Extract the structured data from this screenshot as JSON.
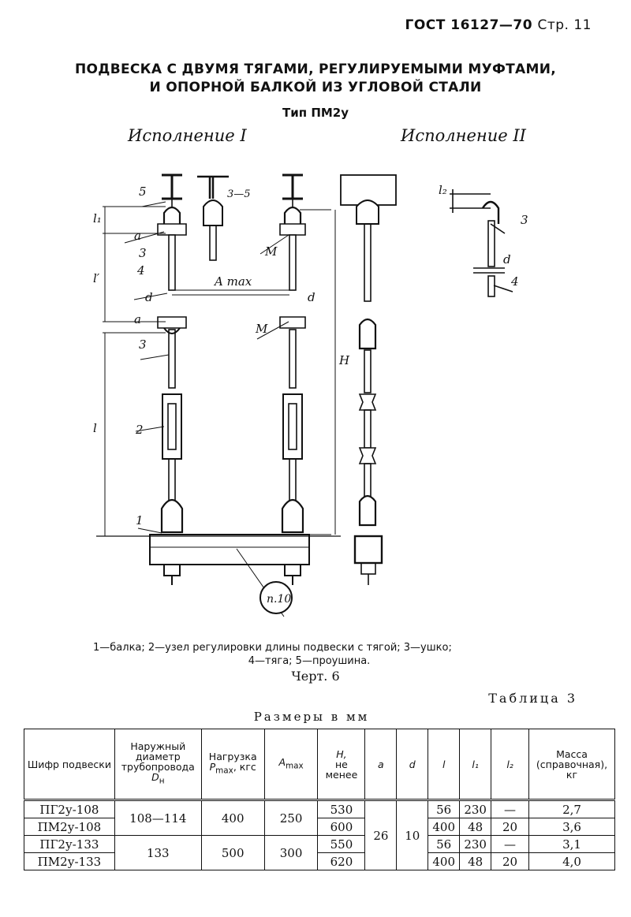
{
  "header": {
    "gost": "ГОСТ 16127—70",
    "page": "Стр. 11"
  },
  "title": {
    "line1": "ПОДВЕСКА С ДВУМЯ ТЯГАМИ, РЕГУЛИРУЕМЫМИ МУФТАМИ,",
    "line2": "И ОПОРНОЙ БАЛКОЙ ИЗ УГЛОВОЙ СТАЛИ",
    "type": "Тип ПМ2у"
  },
  "versions": {
    "v1": "Исполнение I",
    "v2": "Исполнение II"
  },
  "drawing": {
    "labels": {
      "n1": "1",
      "n2": "2",
      "n3a": "3",
      "n3b": "3",
      "n3c": "3",
      "n4a": "4",
      "n4b": "4",
      "n5": "5",
      "m1": "M",
      "m2": "M",
      "amax": "A max",
      "d1": "d",
      "d2": "d",
      "d3": "d",
      "a1": "a",
      "a2": "a",
      "l1": "l₁",
      "lprime": "l′",
      "l": "l",
      "H": "H",
      "l2": "l₂",
      "r35": "3—5",
      "ref": "п.10"
    }
  },
  "legend": {
    "line1": "1—балка; 2—узел регулировки длины подвески с тягой; 3—ушко;",
    "line2": "4—тяга; 5—проушина."
  },
  "chert": "Черт. 6",
  "table": {
    "caption": "Таблица 3",
    "units": "Размеры в мм",
    "headers": {
      "shifr": "Шифр подвески",
      "dn_a": "Наружный диаметр трубопровода",
      "dn_b": "D",
      "dn_sub": "н",
      "load_a": "Нагрузка",
      "load_b": "P",
      "load_sub": "max",
      "load_c": ", кгс",
      "amax": "A",
      "amax_sub": "max",
      "H": "H,",
      "H_b": "не менее",
      "a": "a",
      "d": "d",
      "l": "l",
      "l1": "l₁",
      "l2": "l₂",
      "mass": "Масса (справочная), кг"
    },
    "rows": [
      {
        "shifr": "ПГ2у-108",
        "dn": "108—114",
        "load": "400",
        "amax": "250",
        "H": "530",
        "a": "26",
        "d": "10",
        "l": "56",
        "l1": "230",
        "l2": "—",
        "mass": "2,7"
      },
      {
        "shifr": "ПМ2у-108",
        "H": "600",
        "l": "400",
        "l1": "48",
        "l2": "20",
        "mass": "3,6"
      },
      {
        "shifr": "ПГ2у-133",
        "dn": "133",
        "load": "500",
        "amax": "300",
        "H": "550",
        "l": "56",
        "l1": "230",
        "l2": "—",
        "mass": "3,1"
      },
      {
        "shifr": "ПМ2у-133",
        "H": "620",
        "l": "400",
        "l1": "48",
        "l2": "20",
        "mass": "4,0"
      }
    ]
  }
}
